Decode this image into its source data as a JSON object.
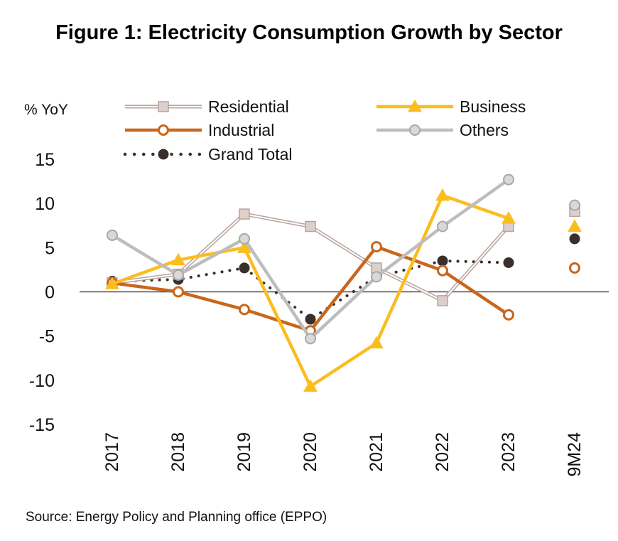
{
  "title": "Figure 1: Electricity Consumption Growth by Sector",
  "source": "Source: Energy Policy and Planning office (EPPO)",
  "chart_data": {
    "type": "line",
    "title": "Figure 1: Electricity Consumption Growth by Sector",
    "ylabel": "% YoY",
    "xlabel": "",
    "ylim": [
      -15,
      15
    ],
    "yticks": [
      "15",
      "10",
      "5",
      "0",
      "-5",
      "-10",
      "-15"
    ],
    "categories": [
      "2017",
      "2018",
      "2019",
      "2020",
      "2021",
      "2022",
      "2023",
      "9M24"
    ],
    "grid": false,
    "legend": "top",
    "series": [
      {
        "name": "Residential",
        "color": "#c9b8b4",
        "marker": "square",
        "values": [
          1.0,
          2.0,
          8.8,
          7.4,
          2.7,
          -1.0,
          7.4,
          9.1
        ]
      },
      {
        "name": "Business",
        "color": "#fbbd1e",
        "marker": "triangle",
        "values": [
          0.9,
          3.6,
          5.0,
          -10.7,
          -5.8,
          10.9,
          8.3,
          7.4
        ]
      },
      {
        "name": "Industrial",
        "color": "#c9661c",
        "marker": "circle-open",
        "values": [
          1.0,
          0.0,
          -2.0,
          -4.4,
          5.1,
          2.4,
          -2.6,
          2.7
        ]
      },
      {
        "name": "Others",
        "color": "#bdbdbd",
        "marker": "circle",
        "values": [
          6.4,
          1.9,
          6.0,
          -5.3,
          1.7,
          7.4,
          12.7,
          9.8
        ]
      },
      {
        "name": "Grand Total",
        "color": "#3a2f2d",
        "marker": "circle-filled",
        "line": "dotted",
        "values": [
          1.2,
          1.4,
          2.7,
          -3.1,
          1.7,
          3.5,
          3.3,
          6.0
        ]
      }
    ],
    "note": "9M24 values shown as markers only (not connected)"
  }
}
